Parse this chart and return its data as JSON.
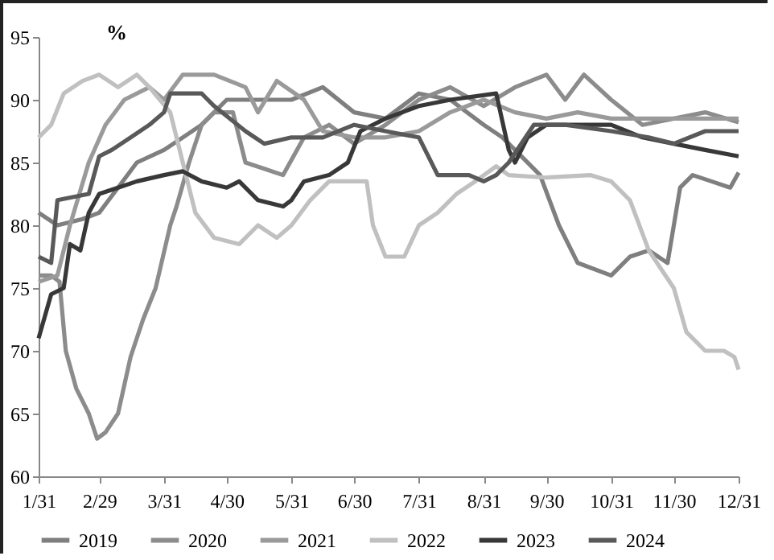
{
  "chart_data": {
    "type": "line",
    "ylabel": "%",
    "legend": "bottom",
    "grid": false,
    "marker": "none",
    "line_style": "solid",
    "xlim": [
      "--01-31",
      "--12-31"
    ],
    "xticks": [
      {
        "value": "--01-31",
        "label": "1/31"
      },
      {
        "value": "--02-29",
        "label": "2/29"
      },
      {
        "value": "--03-31",
        "label": "3/31"
      },
      {
        "value": "--04-30",
        "label": "4/30"
      },
      {
        "value": "--05-31",
        "label": "5/31"
      },
      {
        "value": "--06-30",
        "label": "6/30"
      },
      {
        "value": "--07-31",
        "label": "7/31"
      },
      {
        "value": "--08-31",
        "label": "8/31"
      },
      {
        "value": "--09-30",
        "label": "9/30"
      },
      {
        "value": "--10-31",
        "label": "10/31"
      },
      {
        "value": "--11-30",
        "label": "11/30"
      },
      {
        "value": "--12-31",
        "label": "12/31"
      }
    ],
    "ylim": [
      60,
      95
    ],
    "yticks": [
      60,
      65,
      70,
      75,
      80,
      85,
      90,
      95
    ],
    "series": [
      {
        "name": "2019",
        "color": "#7f7f7f",
        "x": [
          "--01-31",
          "--02-09",
          "--02-21",
          "--02-29",
          "--03-09",
          "--03-18",
          "--03-31",
          "--04-09",
          "--04-18",
          "--04-30",
          "--05-15",
          "--05-31",
          "--06-15",
          "--06-30",
          "--07-15",
          "--07-31",
          "--08-15",
          "--08-31",
          "--09-09",
          "--09-18",
          "--09-27",
          "--10-06",
          "--10-15",
          "--10-31",
          "--11-09",
          "--11-18",
          "--11-27",
          "--12-03",
          "--12-09",
          "--12-18",
          "--12-27",
          "--12-31"
        ],
        "values": [
          81,
          80,
          80.5,
          81,
          83,
          85,
          86,
          87,
          88,
          90,
          90,
          90,
          91,
          89,
          88.5,
          90.5,
          90,
          88,
          87,
          85.5,
          84,
          80,
          77,
          76,
          77.5,
          78,
          77,
          83,
          84,
          83.5,
          83,
          84.2
        ]
      },
      {
        "name": "2020",
        "color": "#8c8c8c",
        "x": [
          "--01-31",
          "--02-06",
          "--02-10",
          "--02-13",
          "--02-18",
          "--02-24",
          "--02-28",
          "--03-03",
          "--03-09",
          "--03-15",
          "--03-21",
          "--03-27",
          "--04-03",
          "--04-06",
          "--04-12",
          "--04-18",
          "--04-24",
          "--05-03",
          "--05-09",
          "--05-18",
          "--05-27",
          "--06-06",
          "--06-18",
          "--06-30",
          "--07-15",
          "--07-31",
          "--08-15",
          "--08-31",
          "--09-15",
          "--09-30",
          "--10-09",
          "--10-18",
          "--10-31",
          "--11-15",
          "--11-30",
          "--12-15",
          "--12-31"
        ],
        "values": [
          76,
          76,
          75.5,
          70,
          67,
          65,
          63,
          63.5,
          65,
          69.5,
          72.5,
          75,
          80,
          81.5,
          85,
          88,
          89,
          89,
          85,
          84.5,
          84,
          87,
          88,
          86.5,
          88,
          90,
          91,
          89.5,
          91,
          92,
          90,
          92,
          90,
          88,
          88.5,
          89,
          88.2
        ]
      },
      {
        "name": "2021",
        "color": "#9a9a9a",
        "x": [
          "--01-31",
          "--02-09",
          "--02-15",
          "--02-24",
          "--03-03",
          "--03-12",
          "--03-24",
          "--03-31",
          "--04-09",
          "--04-24",
          "--05-09",
          "--05-15",
          "--05-24",
          "--06-06",
          "--06-15",
          "--06-30",
          "--07-15",
          "--07-31",
          "--08-15",
          "--08-31",
          "--09-15",
          "--09-30",
          "--10-15",
          "--10-31",
          "--11-30",
          "--12-31"
        ],
        "values": [
          75.5,
          76,
          80,
          85,
          88,
          90,
          91,
          90,
          92,
          92,
          91,
          89,
          91.5,
          90,
          87.5,
          87,
          87,
          87.5,
          89,
          90,
          89,
          88.5,
          89,
          88.5,
          88.5,
          88.5
        ]
      },
      {
        "name": "2022",
        "color": "#c0c0c0",
        "x": [
          "--01-31",
          "--02-06",
          "--02-12",
          "--02-21",
          "--02-29",
          "--03-09",
          "--03-18",
          "--03-24",
          "--04-03",
          "--04-09",
          "--04-15",
          "--04-24",
          "--05-06",
          "--05-15",
          "--05-24",
          "--05-31",
          "--06-09",
          "--06-18",
          "--06-30",
          "--07-06",
          "--07-09",
          "--07-15",
          "--07-24",
          "--07-31",
          "--08-09",
          "--08-18",
          "--08-27",
          "--09-06",
          "--09-12",
          "--09-30",
          "--10-21",
          "--10-31",
          "--11-09",
          "--11-18",
          "--11-30",
          "--12-06",
          "--12-15",
          "--12-24",
          "--12-29",
          "--12-31"
        ],
        "values": [
          87,
          88,
          90.5,
          91.5,
          92,
          91,
          92,
          91,
          89,
          85,
          81,
          79,
          78.5,
          80,
          79,
          80,
          82,
          83.5,
          83.5,
          83.5,
          80,
          77.5,
          77.5,
          80,
          81,
          82.5,
          83.5,
          84.7,
          84,
          83.8,
          84,
          83.5,
          82,
          78,
          75,
          71.5,
          70,
          70,
          69.5,
          68.5
        ]
      },
      {
        "name": "2023",
        "color": "#383838",
        "x": [
          "--01-31",
          "--02-06",
          "--02-12",
          "--02-15",
          "--02-20",
          "--02-24",
          "--02-29",
          "--03-09",
          "--03-18",
          "--03-31",
          "--04-09",
          "--04-18",
          "--04-30",
          "--05-06",
          "--05-15",
          "--05-27",
          "--05-31",
          "--06-06",
          "--06-18",
          "--06-27",
          "--07-03",
          "--07-15",
          "--07-31",
          "--08-15",
          "--09-06",
          "--09-12",
          "--09-15",
          "--09-21",
          "--09-30",
          "--10-31",
          "--11-15",
          "--11-30",
          "--12-15",
          "--12-31"
        ],
        "values": [
          71,
          74.5,
          75,
          78.5,
          78,
          81,
          82.5,
          83,
          83.5,
          84,
          84.3,
          83.5,
          83,
          83.5,
          82,
          81.5,
          82,
          83.5,
          84,
          85,
          87.5,
          88.5,
          89.5,
          90,
          90.5,
          86,
          85,
          87,
          88,
          88,
          87,
          86.5,
          86,
          85.5
        ]
      },
      {
        "name": "2024",
        "color": "#595959",
        "x": [
          "--01-31",
          "--02-06",
          "--02-09",
          "--02-24",
          "--02-29",
          "--03-06",
          "--03-15",
          "--03-24",
          "--03-31",
          "--04-03",
          "--04-18",
          "--04-24",
          "--05-09",
          "--05-18",
          "--05-31",
          "--06-15",
          "--06-30",
          "--07-15",
          "--07-31",
          "--08-09",
          "--08-24",
          "--08-31",
          "--09-06",
          "--09-12",
          "--09-24",
          "--10-09",
          "--10-31",
          "--11-18",
          "--11-30",
          "--12-15",
          "--12-31"
        ],
        "values": [
          77.5,
          77,
          82,
          82.5,
          85.5,
          86,
          87,
          88,
          89,
          90.5,
          90.5,
          89.5,
          87.5,
          86.5,
          87,
          87,
          88,
          87.5,
          87,
          84,
          84,
          83.5,
          84,
          85,
          88,
          88,
          87.5,
          87,
          86.5,
          87.5,
          87.5
        ]
      }
    ]
  }
}
